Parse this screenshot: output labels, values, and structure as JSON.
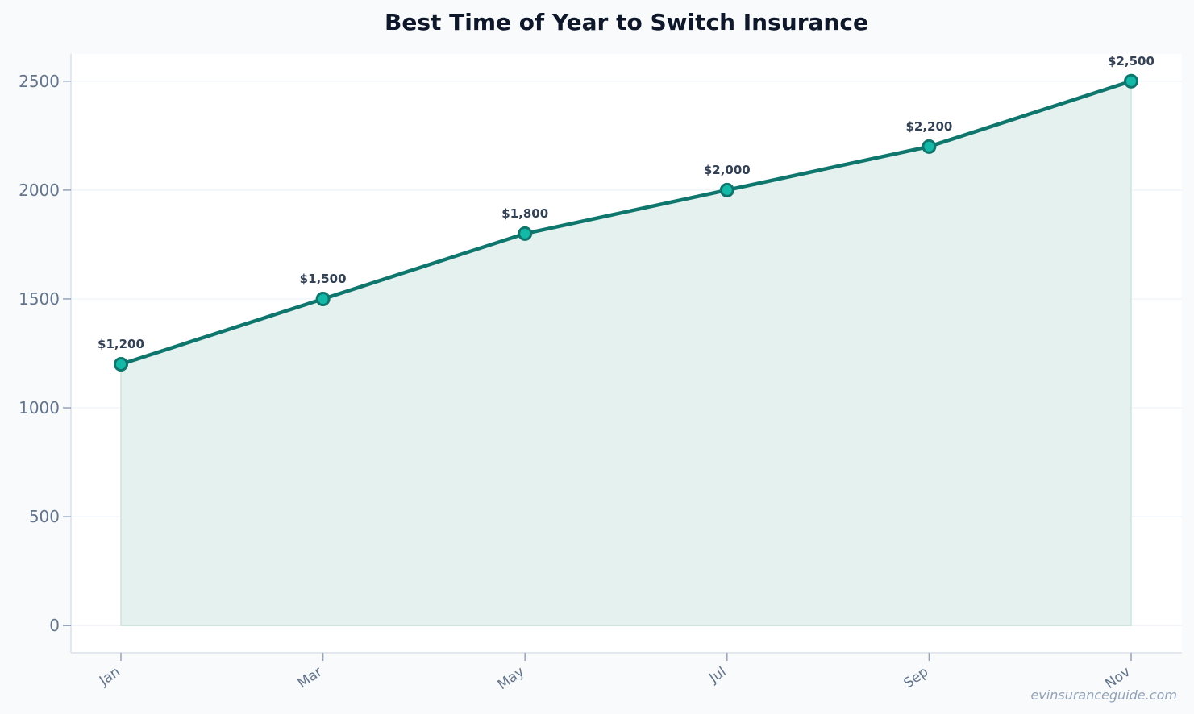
{
  "chart_data": {
    "type": "area",
    "title": "Best Time of Year to Switch Insurance",
    "xlabel": "",
    "ylabel": "",
    "categories": [
      "Jan",
      "Mar",
      "May",
      "Jul",
      "Sep",
      "Nov"
    ],
    "values": [
      1200,
      1500,
      1800,
      2000,
      2200,
      2500
    ],
    "data_labels": [
      "$1,200",
      "$1,500",
      "$1,800",
      "$2,000",
      "$2,200",
      "$2,500"
    ],
    "yticks": [
      0,
      500,
      1000,
      1500,
      2000,
      2500
    ],
    "ylim": [
      -125,
      2625
    ],
    "grid": true,
    "legend": "none",
    "colors": {
      "line": "#0f766e",
      "fill": "#e4f1ee",
      "marker_fill": "#14b8a6",
      "marker_stroke": "#0f766e"
    }
  },
  "watermark": "evinsuranceguide.com"
}
